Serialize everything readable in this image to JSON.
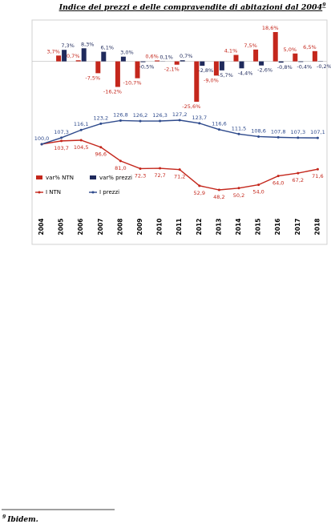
{
  "title": {
    "text": "Indice dei prezzi e delle compravendite di abitazioni dal 2004",
    "note": "9"
  },
  "chart_data": {
    "type": "combo",
    "categories": [
      "2004",
      "2005",
      "2006",
      "2007",
      "2008",
      "2009",
      "2010",
      "2011",
      "2012",
      "2013",
      "2014",
      "2015",
      "2016",
      "2017",
      "2018"
    ],
    "series": [
      {
        "name": "var% NTN",
        "type": "bar",
        "color": "#c4271c",
        "values": [
          null,
          3.7,
          0.7,
          -7.5,
          -16.2,
          -10.7,
          0.6,
          -2.1,
          -25.6,
          -9.0,
          4.1,
          7.5,
          18.6,
          5.0,
          6.5
        ],
        "value_labels": [
          null,
          "3,7%",
          "0,7%",
          "-7,5%",
          "-16,2%",
          "-10,7%",
          "0,6%",
          "-2,1%",
          "-25,6%",
          "-9,0%",
          "4,1%",
          "7,5%",
          "18,6%",
          "5,0%",
          "6,5%"
        ]
      },
      {
        "name": "var% prezzi",
        "type": "bar",
        "color": "#1f2a5c",
        "values": [
          null,
          7.3,
          8.3,
          6.1,
          3.0,
          -0.5,
          0.1,
          0.7,
          -2.8,
          -5.7,
          -4.4,
          -2.6,
          -0.8,
          -0.4,
          -0.2
        ],
        "value_labels": [
          null,
          "7,3%",
          "8,3%",
          "6,1%",
          "3,0%",
          "-0,5%",
          "0,1%",
          "0,7%",
          "-2,8%",
          "-5,7%",
          "-4,4%",
          "-2,6%",
          "-0,8%",
          "-0,4%",
          "-0,2%"
        ]
      },
      {
        "name": "I NTN",
        "type": "line",
        "color": "#c4271c",
        "values": [
          100.0,
          103.7,
          104.5,
          96.6,
          81.0,
          72.3,
          72.7,
          71.2,
          52.9,
          48.2,
          50.2,
          54.0,
          64.0,
          67.2,
          71.6
        ],
        "value_labels": [
          null,
          "103,7",
          "104,5",
          "96,6",
          "81,0",
          "72,3",
          "72,7",
          "71,2",
          "52,9",
          "48,2",
          "50,2",
          "54,0",
          "64,0",
          "67,2",
          "71,6"
        ]
      },
      {
        "name": "I prezzi",
        "type": "line",
        "color": "#2e4a8c",
        "values": [
          100.0,
          107.3,
          116.1,
          123.2,
          126.8,
          126.2,
          126.3,
          127.2,
          123.7,
          116.6,
          111.5,
          108.6,
          107.8,
          107.3,
          107.1
        ],
        "value_labels": [
          "100,0",
          "107,3",
          "116,1",
          "123,2",
          "126,8",
          "126,2",
          "126,3",
          "127,2",
          "123,7",
          "116,6",
          "111,5",
          "108,6",
          "107,8",
          "107,3",
          "107,1"
        ]
      }
    ]
  },
  "footnote": {
    "number": "9",
    "text": "Ibidem."
  }
}
